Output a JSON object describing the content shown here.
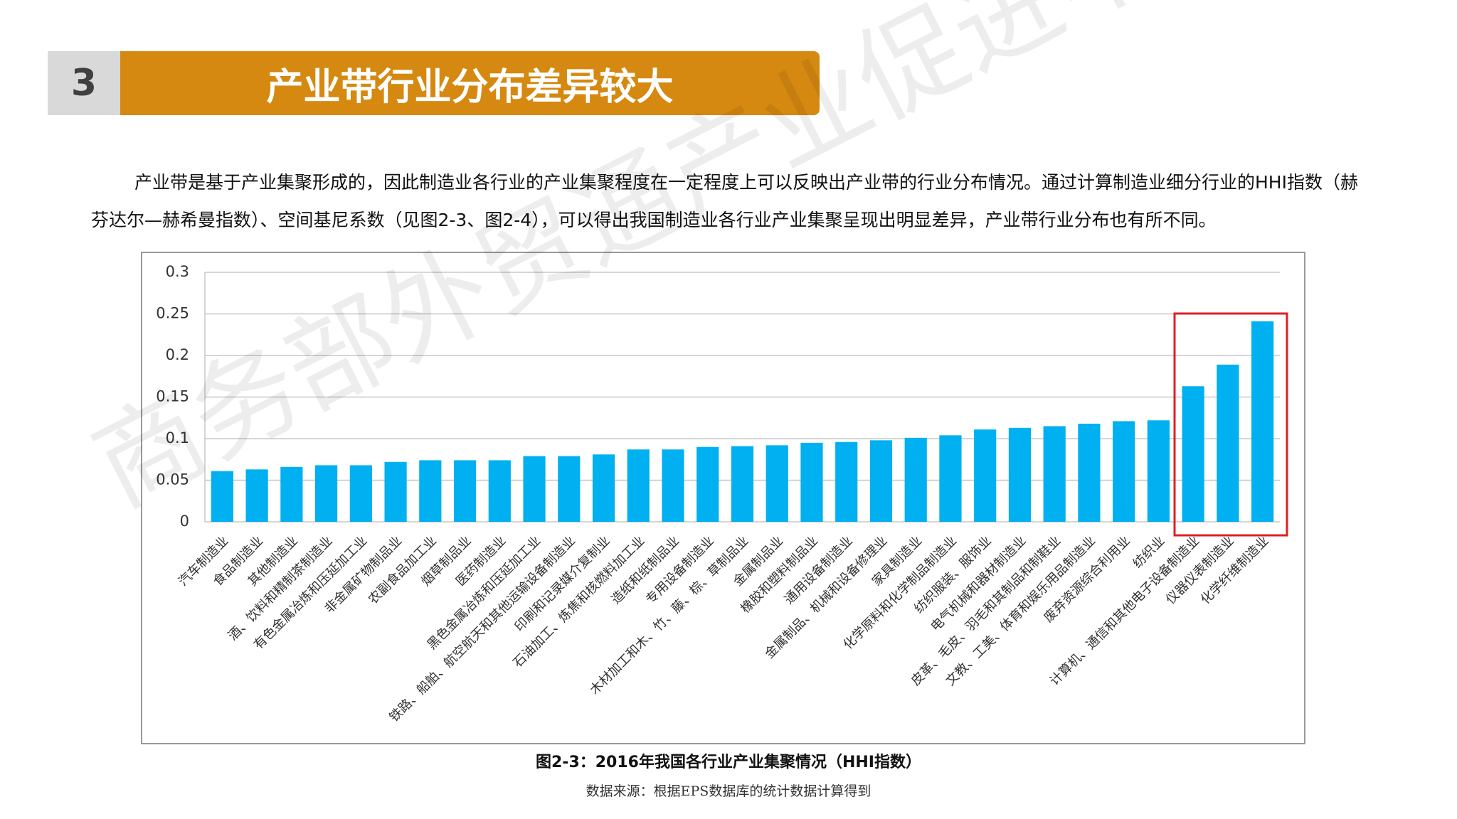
{
  "header": {
    "number": "3",
    "title": "产业带行业分布差异较大"
  },
  "paragraph": "产业带是基于产业集聚形成的，因此制造业各行业的产业集聚程度在一定程度上可以反映出产业带的行业分布情况。通过计算制造业细分行业的HHI指数（赫芬达尔—赫希曼指数）、空间基尼系数（见图2-3、图2-4），可以得出我国制造业各行业产业集聚呈现出明显差异，产业带行业分布也有所不同。",
  "chart_data": {
    "type": "bar",
    "categories": [
      "汽车制造业",
      "食品制造业",
      "其他制造业",
      "酒、饮料和精制茶制造业",
      "有色金属冶炼和压延加工业",
      "非金属矿物制品业",
      "农副食品加工业",
      "烟草制品业",
      "医药制造业",
      "黑色金属冶炼和压延加工业",
      "铁路、船舶、航空航天和其他运输设备制造业",
      "印刷和记录媒介复制业",
      "石油加工、炼焦和核燃料加工业",
      "造纸和纸制品业",
      "专用设备制造业",
      "木材加工和木、竹、藤、棕、草制品业",
      "金属制品业",
      "橡胶和塑料制品业",
      "通用设备制造业",
      "金属制品、机械和设备修理业",
      "家具制造业",
      "化学原料和化学制品制造业",
      "纺织服装、服饰业",
      "电气机械和器材制造业",
      "皮革、毛皮、羽毛和其制品和制鞋业",
      "文教、工美、体育和娱乐用品制造业",
      "废弃资源综合利用业",
      "纺织业",
      "计算机、通信和其他电子设备制造业",
      "仪器仪表制造业",
      "化学纤维制造业"
    ],
    "values": [
      0.061,
      0.063,
      0.066,
      0.068,
      0.068,
      0.072,
      0.074,
      0.074,
      0.074,
      0.079,
      0.079,
      0.081,
      0.087,
      0.087,
      0.09,
      0.091,
      0.092,
      0.095,
      0.096,
      0.098,
      0.101,
      0.104,
      0.111,
      0.113,
      0.115,
      0.118,
      0.121,
      0.122,
      0.163,
      0.189,
      0.241
    ],
    "color": "#00b0f0",
    "ylim": [
      0,
      0.3
    ],
    "yticks": [
      0,
      0.05,
      0.1,
      0.15,
      0.2,
      0.25,
      0.3
    ],
    "grid": true,
    "caption": "图2-3：2016年我国各行业产业集聚情况（HHI指数）"
  },
  "source": "数据来源：根据EPS数据库的统计数据计算得到",
  "watermark": "商务部外贸通产业促进中心"
}
